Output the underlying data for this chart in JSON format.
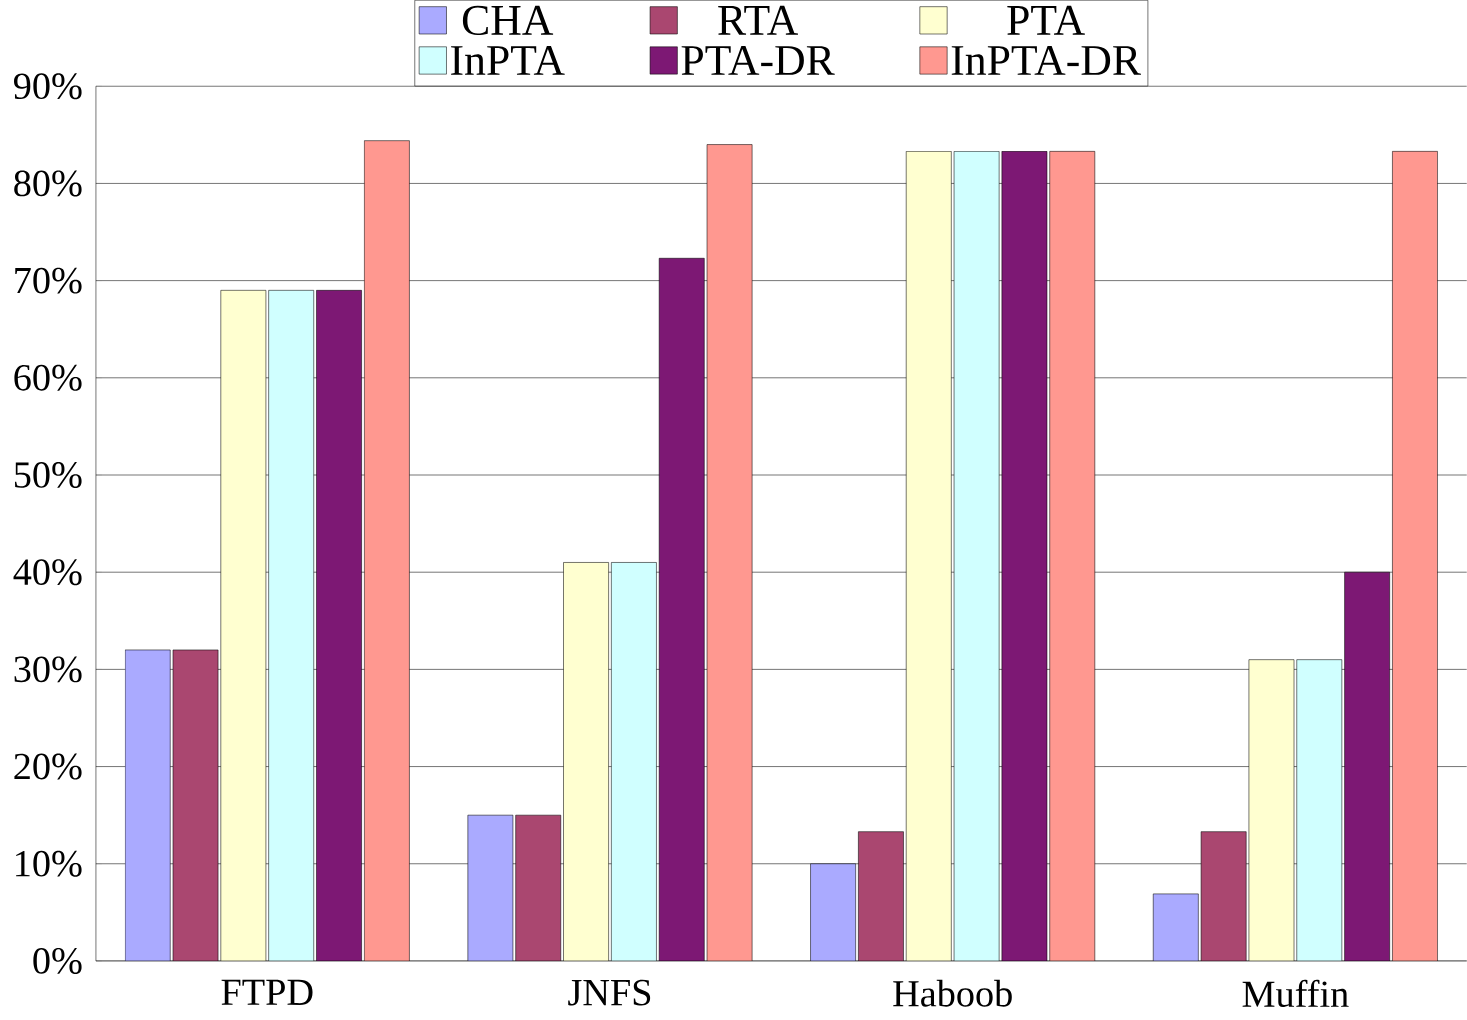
{
  "chart_data": {
    "type": "bar",
    "categories": [
      "FTPD",
      "JNFS",
      "Haboob",
      "Muffin"
    ],
    "series": [
      {
        "name": "CHA",
        "color": "#aaaaff",
        "values": [
          32,
          15,
          10,
          6.9
        ]
      },
      {
        "name": "RTA",
        "color": "#aa4770",
        "values": [
          32,
          15,
          13.3,
          13.3
        ]
      },
      {
        "name": "PTA",
        "color": "#ffffd0",
        "values": [
          69,
          41,
          83.3,
          31
        ]
      },
      {
        "name": "InPTA",
        "color": "#d0ffff",
        "values": [
          69,
          41,
          83.3,
          31
        ]
      },
      {
        "name": "PTA-DR",
        "color": "#7d1874",
        "values": [
          69,
          72.3,
          83.3,
          40
        ]
      },
      {
        "name": "InPTA-DR",
        "color": "#ff9890",
        "values": [
          84.4,
          84,
          83.3,
          83.3
        ]
      }
    ],
    "ylim": [
      0,
      90
    ],
    "yticks": [
      {
        "value": 0,
        "label": "0%"
      },
      {
        "value": 10,
        "label": "10%"
      },
      {
        "value": 20,
        "label": "20%"
      },
      {
        "value": 30,
        "label": "30%"
      },
      {
        "value": 40,
        "label": "40%"
      },
      {
        "value": 50,
        "label": "50%"
      },
      {
        "value": 60,
        "label": "60%"
      },
      {
        "value": 70,
        "label": "70%"
      },
      {
        "value": 80,
        "label": "80%"
      },
      {
        "value": 90,
        "label": "90%"
      }
    ],
    "grid": "y",
    "legend": "top"
  }
}
